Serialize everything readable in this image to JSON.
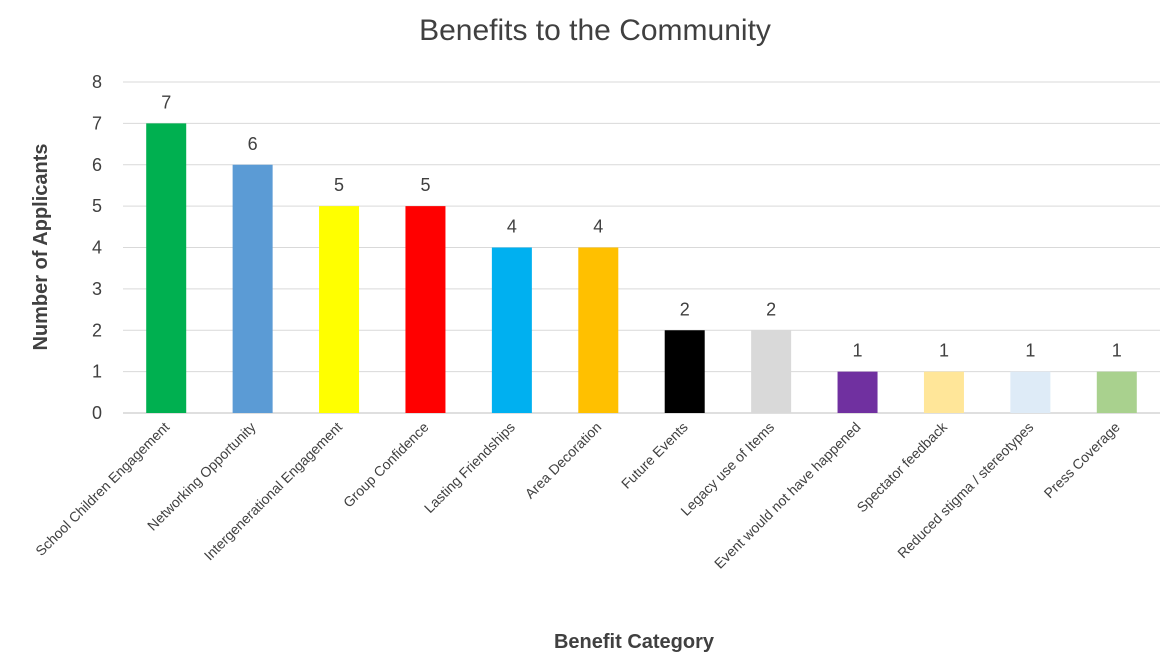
{
  "chart_data": {
    "type": "bar",
    "title": "Benefits to the Community",
    "xlabel": "Benefit Category",
    "ylabel": "Number of Applicants",
    "ylim": [
      0,
      8
    ],
    "yticks": [
      0,
      1,
      2,
      3,
      4,
      5,
      6,
      7,
      8
    ],
    "grid": true,
    "legend": "none",
    "categories": [
      "School Children Engagement",
      "Networking Opportunity",
      "Intergenerational Engagement",
      "Group Confidence",
      "Lasting Friendships",
      "Area Decoration",
      "Future Events",
      "Legacy use of Items",
      "Event would not have happened",
      "Spectator feedback",
      "Reduced stigma / stereotypes",
      "Press Coverage"
    ],
    "values": [
      7,
      6,
      5,
      5,
      4,
      4,
      2,
      2,
      1,
      1,
      1,
      1
    ],
    "colors": [
      "#00b050",
      "#5b9bd5",
      "#ffff00",
      "#ff0000",
      "#00b0f0",
      "#ffc000",
      "#000000",
      "#d9d9d9",
      "#7030a0",
      "#ffe699",
      "#deebf7",
      "#a9d18e"
    ]
  }
}
